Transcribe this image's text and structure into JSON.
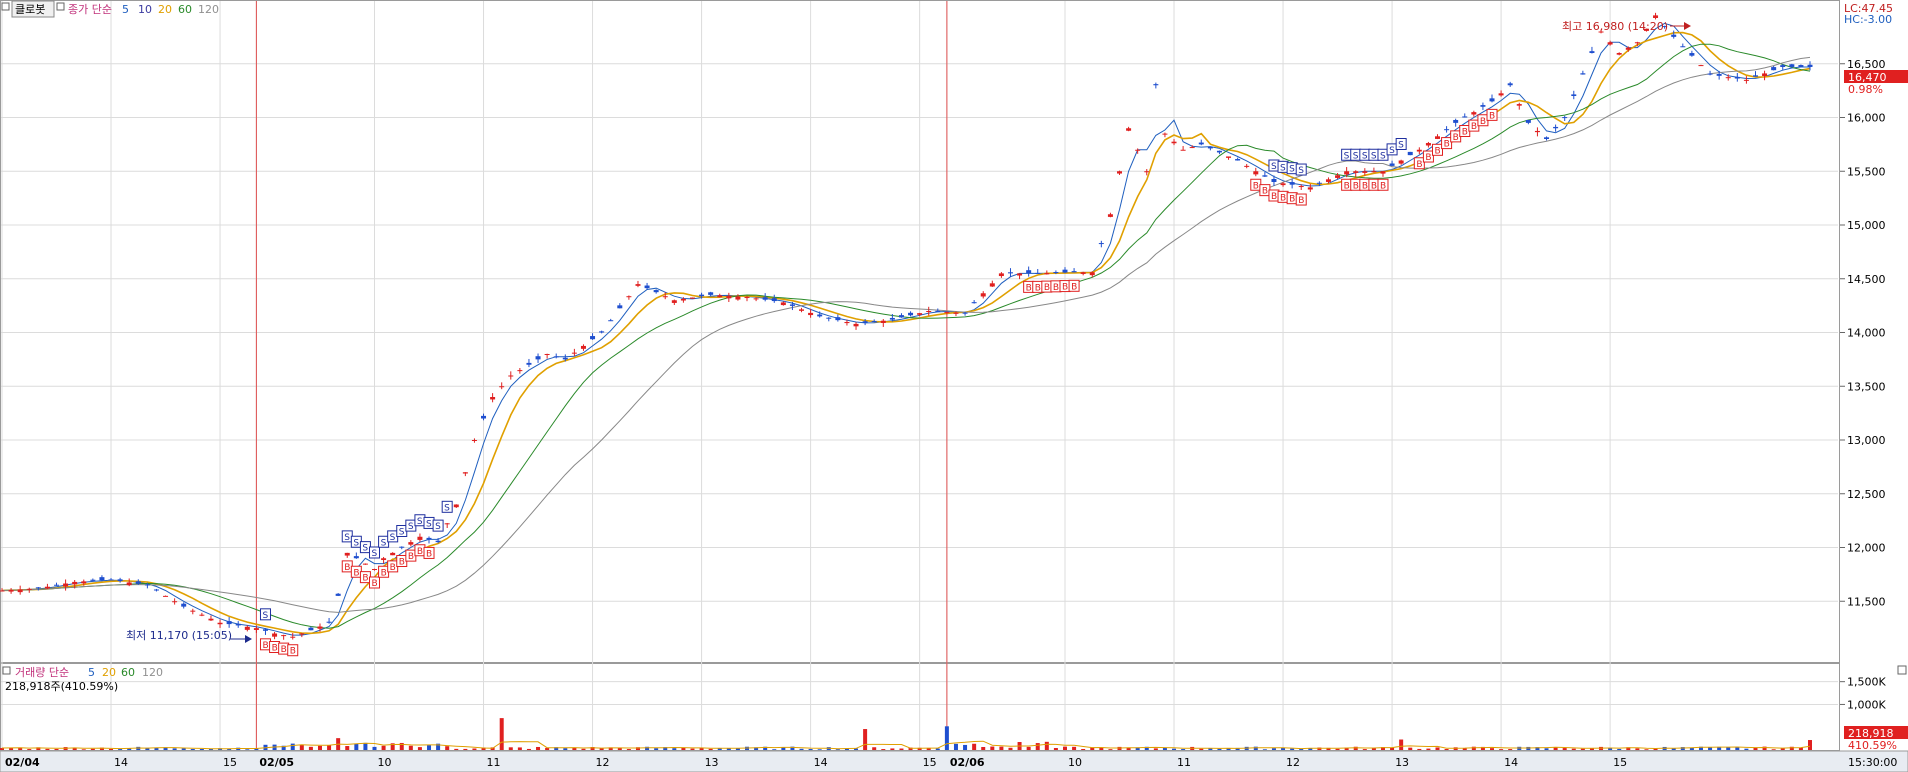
{
  "legend_price": {
    "box": "클로봇",
    "label": "종가 단순",
    "periods": [
      "5",
      "10",
      "20",
      "60",
      "120"
    ],
    "colors": [
      "#1f5fbf",
      "#3a3aa0",
      "#e0a000",
      "#2a8a2a",
      "#909090"
    ]
  },
  "legend_volume": {
    "label": "거래량 단순",
    "periods": [
      "5",
      "20",
      "60",
      "120"
    ],
    "colors": [
      "#1f5fbf",
      "#e0a000",
      "#2a8a2a",
      "#909090"
    ],
    "current": "218,918주(410.59%)"
  },
  "right_panel": {
    "lc": "LC:47.45",
    "hc": "HC:-3.00",
    "current_price": "16,470",
    "current_pct": "0.98%",
    "current_volume": "218,918",
    "current_volume_pct": "410.59%",
    "time": "15:30:00"
  },
  "annotations": {
    "low": "최저 11,170 (15:05)",
    "high": "최고 16,980 (14:20)"
  },
  "x_labels": [
    {
      "text": "02/04",
      "bold": true
    },
    {
      "text": "14"
    },
    {
      "text": "15"
    },
    {
      "text": "02/05",
      "bold": true
    },
    {
      "text": "10"
    },
    {
      "text": "11"
    },
    {
      "text": "12"
    },
    {
      "text": "13"
    },
    {
      "text": "14"
    },
    {
      "text": "15"
    },
    {
      "text": "02/06",
      "bold": true
    },
    {
      "text": "10"
    },
    {
      "text": "11"
    },
    {
      "text": "12"
    },
    {
      "text": "13"
    },
    {
      "text": "14"
    },
    {
      "text": "15"
    }
  ],
  "chart_data": {
    "type": "line",
    "price_axis": {
      "ylim": [
        11000,
        17000
      ],
      "ticks": [
        11500,
        12000,
        12500,
        13000,
        13500,
        14000,
        14500,
        15000,
        15500,
        16000,
        16500
      ],
      "tick_labels": [
        "11,500",
        "12,000",
        "12,500",
        "13,000",
        "13,500",
        "14,000",
        "14,500",
        "15,000",
        "15,500",
        "16,000",
        "16,500"
      ]
    },
    "volume_axis": {
      "ylim": [
        0,
        1800000
      ],
      "ticks": [
        1000000,
        1500000
      ],
      "tick_labels": [
        "1,000K",
        "1,500K"
      ]
    },
    "session_dividers": [
      "02/05",
      "02/06"
    ],
    "price_series": {
      "name": "클로봇",
      "x_time_index": [
        0,
        4,
        8,
        12,
        16,
        20,
        24,
        28,
        30,
        32,
        34,
        36,
        37,
        38,
        40,
        41,
        42,
        44,
        46,
        48,
        50,
        52,
        54,
        56,
        58,
        60,
        62,
        66,
        70,
        74,
        78,
        82,
        86,
        90,
        94,
        98,
        102,
        106,
        110,
        114,
        118,
        120,
        122,
        124,
        126,
        127,
        128,
        130,
        132,
        136,
        140,
        144,
        148,
        152,
        156,
        160,
        164,
        166,
        168,
        170,
        172,
        174,
        176,
        178,
        180,
        182,
        184,
        188,
        192,
        196
      ],
      "y": [
        11600,
        11620,
        11680,
        11700,
        11650,
        11450,
        11300,
        11250,
        11200,
        11170,
        11230,
        11300,
        11550,
        11950,
        11850,
        11800,
        11900,
        12000,
        12100,
        12050,
        12400,
        13000,
        13400,
        13600,
        13700,
        13800,
        13750,
        14000,
        14450,
        14300,
        14350,
        14330,
        14280,
        14150,
        14080,
        14120,
        14200,
        14180,
        14550,
        14550,
        14560,
        14560,
        15100,
        15900,
        15500,
        16300,
        15850,
        15700,
        15750,
        15600,
        15400,
        15350,
        15500,
        15500,
        15700,
        15950,
        16150,
        16300,
        15950,
        15800,
        16000,
        16400,
        16800,
        16600,
        16700,
        16950,
        16750,
        16400,
        16350,
        16470
      ]
    },
    "signals": {
      "buy_count": 40,
      "sell_count": 24
    },
    "volume_peaks": [
      {
        "time": "02/05 10:00",
        "value": 260000
      },
      {
        "time": "02/05 11:40",
        "value": 700000
      },
      {
        "time": "02/05 14:35",
        "value": 460000
      },
      {
        "time": "02/06 09:00",
        "value": 520000
      },
      {
        "time": "02/06 13:10",
        "value": 230000
      },
      {
        "time": "02/06 15:30",
        "value": 218918
      }
    ]
  }
}
